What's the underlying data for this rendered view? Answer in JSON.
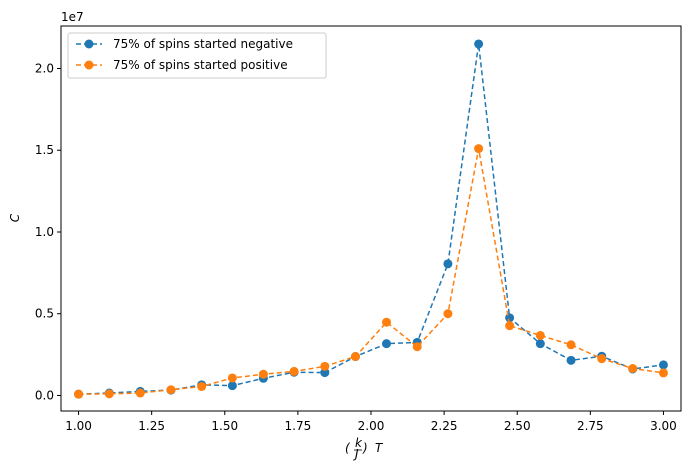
{
  "chart_data": {
    "type": "line",
    "x": [
      1.0,
      1.105,
      1.211,
      1.316,
      1.421,
      1.526,
      1.632,
      1.737,
      1.842,
      1.947,
      2.053,
      2.158,
      2.263,
      2.368,
      2.474,
      2.579,
      2.684,
      2.789,
      2.895,
      3.0
    ],
    "series": [
      {
        "name": "75% of spins started negative",
        "color": "#1f77b4",
        "values": [
          0.08,
          0.15,
          0.25,
          0.33,
          0.65,
          0.6,
          1.05,
          1.42,
          1.4,
          2.38,
          3.17,
          3.25,
          8.05,
          21.5,
          4.75,
          3.17,
          2.15,
          2.4,
          1.62,
          1.87
        ]
      },
      {
        "name": "75% of spins started positive",
        "color": "#ff7f0e",
        "values": [
          0.08,
          0.1,
          0.15,
          0.35,
          0.55,
          1.07,
          1.3,
          1.47,
          1.78,
          2.38,
          4.48,
          2.98,
          5.0,
          15.1,
          4.27,
          3.67,
          3.1,
          2.25,
          1.65,
          1.38
        ]
      }
    ],
    "xlabel": "(k/J) T",
    "ylabel": "C",
    "y_offset_label": "1e7",
    "xlim": [
      0.94,
      3.06
    ],
    "ylim": [
      -0.95,
      22.6
    ],
    "xticks": [
      1.0,
      1.25,
      1.5,
      1.75,
      2.0,
      2.25,
      2.5,
      2.75,
      3.0
    ],
    "xtick_labels": [
      "1.00",
      "1.25",
      "1.50",
      "1.75",
      "2.00",
      "2.25",
      "2.50",
      "2.75",
      "3.00"
    ],
    "yticks": [
      0,
      5,
      10,
      15,
      20
    ],
    "ytick_labels": [
      "0.0",
      "0.5",
      "1.0",
      "1.5",
      "2.0"
    ],
    "legend_position": "top-left",
    "grid": false,
    "line_style": "dashed",
    "marker": "circle"
  }
}
